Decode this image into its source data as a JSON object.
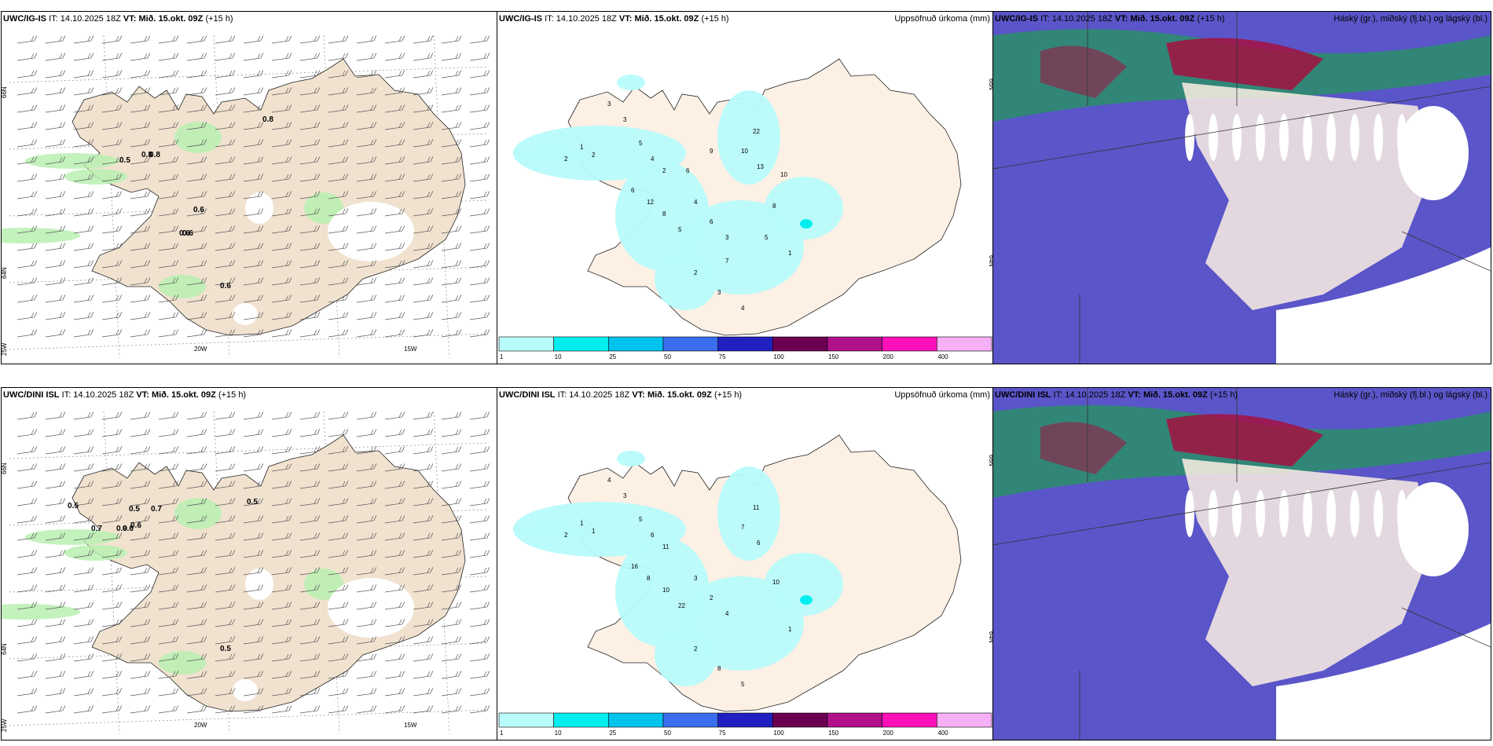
{
  "header_labels": {
    "it_prefix": "IT:",
    "vt_prefix": "VT:"
  },
  "rows": [
    {
      "model": "UWC/IG-IS",
      "init_time": "14.10.2025 18Z",
      "valid_time": "Mið. 15.okt. 09Z",
      "lead": "(+15 h)",
      "wind_labels": [
        "0.8",
        "0.5",
        "0.6",
        "0.8",
        "0.8",
        "0.6",
        "0.6",
        "0.6"
      ],
      "precip_labels": [
        "2",
        "1",
        "2",
        "3",
        "3",
        "5",
        "4",
        "2",
        "6",
        "12",
        "8",
        "5",
        "4",
        "6",
        "3",
        "10",
        "22",
        "13",
        "8",
        "1",
        "2",
        "3",
        "4",
        "5",
        "7",
        "9",
        "6",
        "10"
      ]
    },
    {
      "model": "UWC/DINI ISL",
      "init_time": "14.10.2025 18Z",
      "valid_time": "Mið. 15.okt. 09Z",
      "lead": "(+15 h)",
      "wind_labels": [
        "0.5",
        "0.5",
        "0.5",
        "0.7",
        "0.7",
        "0.9",
        "0.6",
        "0.6",
        "0.5"
      ],
      "precip_labels": [
        "2",
        "1",
        "1",
        "4",
        "3",
        "5",
        "6",
        "11",
        "16",
        "8",
        "10",
        "22",
        "3",
        "2",
        "4",
        "7",
        "11",
        "6",
        "10",
        "1",
        "2",
        "8",
        "5"
      ]
    }
  ],
  "middle_title": "Uppsöfnuð úrkoma (mm)",
  "right_title": "Háský (gr.), miðský (fj.bl.) og lágský (bl.)",
  "axis_labels": {
    "lon": [
      "20W",
      "15W"
    ],
    "lat": [
      "66N",
      "64N"
    ],
    "edge_lon": "25W",
    "mid_lat_top": "66N",
    "mid_lat_bot": "64N"
  },
  "colorbar": {
    "ticks": [
      "1",
      "10",
      "25",
      "50",
      "75",
      "100",
      "150",
      "200",
      "400"
    ],
    "colors": [
      "#b8fbfb",
      "#00eeee",
      "#00c3ee",
      "#3a6eee",
      "#2020c0",
      "#6b0050",
      "#b0108a",
      "#ff10b8",
      "#f6b0f6"
    ]
  },
  "colors": {
    "land": "#f1e2d0",
    "land_mid": "#fdf0e4",
    "precip_light": "#b8fbfb",
    "precip_med": "#00eeee",
    "wind_green": "#b9f0b0",
    "cloud_low": "#5a55c8",
    "cloud_mid": "#2a8f6a",
    "cloud_high": "#a41040"
  }
}
